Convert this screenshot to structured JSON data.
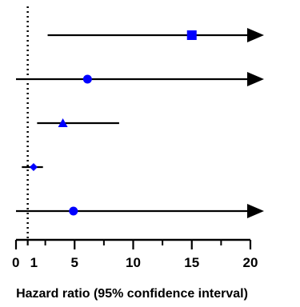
{
  "chart_data": {
    "type": "forest",
    "xlabel": "Hazard ratio (95% confidence interval)",
    "xlim": [
      0,
      20
    ],
    "x_ticks": [
      0,
      1,
      5,
      10,
      15,
      20
    ],
    "x_tick_labels": [
      "0",
      "1",
      "5",
      "10",
      "15",
      "20"
    ],
    "reference_line": 1,
    "reference_line_style": "dotted",
    "marker_color": "#0000ff",
    "line_color": "#000000",
    "rows": [
      {
        "estimate": 15.0,
        "lower": 2.7,
        "upper": 20,
        "upper_arrow": true,
        "marker": "square"
      },
      {
        "estimate": 6.1,
        "lower": 0.0,
        "upper": 20,
        "upper_arrow": true,
        "marker": "circle"
      },
      {
        "estimate": 4.0,
        "lower": 1.8,
        "upper": 8.8,
        "upper_arrow": false,
        "marker": "triangle"
      },
      {
        "estimate": 1.5,
        "lower": 0.5,
        "upper": 2.3,
        "upper_arrow": false,
        "marker": "diamond"
      },
      {
        "estimate": 4.9,
        "lower": 0.0,
        "upper": 20,
        "upper_arrow": true,
        "marker": "circle"
      }
    ]
  }
}
